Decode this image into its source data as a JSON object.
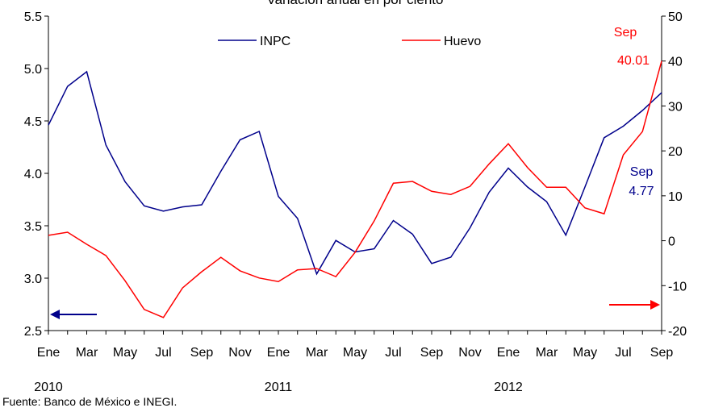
{
  "chart_data": {
    "type": "line",
    "title": "Variación anual en por ciento",
    "categories": [
      "Ene",
      null,
      "Mar",
      null,
      "May",
      null,
      "Jul",
      null,
      "Sep",
      null,
      "Nov",
      null,
      "Ene",
      null,
      "Mar",
      null,
      "May",
      null,
      "Jul",
      null,
      "Sep",
      null,
      "Nov",
      null,
      "Ene",
      null,
      "Mar",
      null,
      "May",
      null,
      "Jul",
      null,
      "Sep"
    ],
    "years": [
      {
        "label": "2010",
        "category": 0
      },
      {
        "label": "2011",
        "category": 12
      },
      {
        "label": "2012",
        "category": 24
      }
    ],
    "series": [
      {
        "name": "INPC",
        "color": "#00008b",
        "axis": "y",
        "values": [
          4.46,
          4.83,
          4.97,
          4.27,
          3.92,
          3.69,
          3.64,
          3.68,
          3.7,
          4.02,
          4.32,
          4.4,
          3.78,
          3.57,
          3.04,
          3.36,
          3.25,
          3.28,
          3.55,
          3.42,
          3.14,
          3.2,
          3.48,
          3.82,
          4.05,
          3.87,
          3.73,
          3.41,
          3.87,
          4.34,
          4.45,
          4.6,
          4.77
        ]
      },
      {
        "name": "Huevo",
        "color": "#ff0000",
        "axis": "y2",
        "values": [
          1.2,
          1.9,
          -0.8,
          -3.3,
          -8.9,
          -15.3,
          -17.1,
          -10.5,
          -6.9,
          -3.7,
          -6.7,
          -8.3,
          -9.1,
          -6.5,
          -6.2,
          -8.0,
          -2.6,
          4.4,
          12.8,
          13.2,
          11.0,
          10.3,
          12.1,
          17.1,
          21.6,
          16.3,
          11.9,
          11.9,
          7.3,
          6.0,
          19.1,
          24.3,
          40.01
        ]
      }
    ],
    "ylim": [
      2.5,
      5.5
    ],
    "yticks": [
      2.5,
      {
        "value": 3,
        "label": "3.0"
      },
      3.5,
      {
        "value": 4,
        "label": "4.0"
      },
      4.5,
      {
        "value": 5,
        "label": "5.0"
      },
      5.5
    ],
    "y2lim": [
      -20,
      50
    ],
    "y2ticks": [
      -20,
      -10,
      0,
      10,
      20,
      30,
      40,
      50
    ],
    "annotations": [
      {
        "text": "Sep",
        "color": "#ff0000"
      },
      {
        "text": "40.01",
        "color": "#ff0000"
      },
      {
        "text": "Sep",
        "color": "#00008b"
      },
      {
        "text": "4.77",
        "color": "#00008b"
      }
    ],
    "source": "Fuente: Banco de México e INEGI."
  }
}
